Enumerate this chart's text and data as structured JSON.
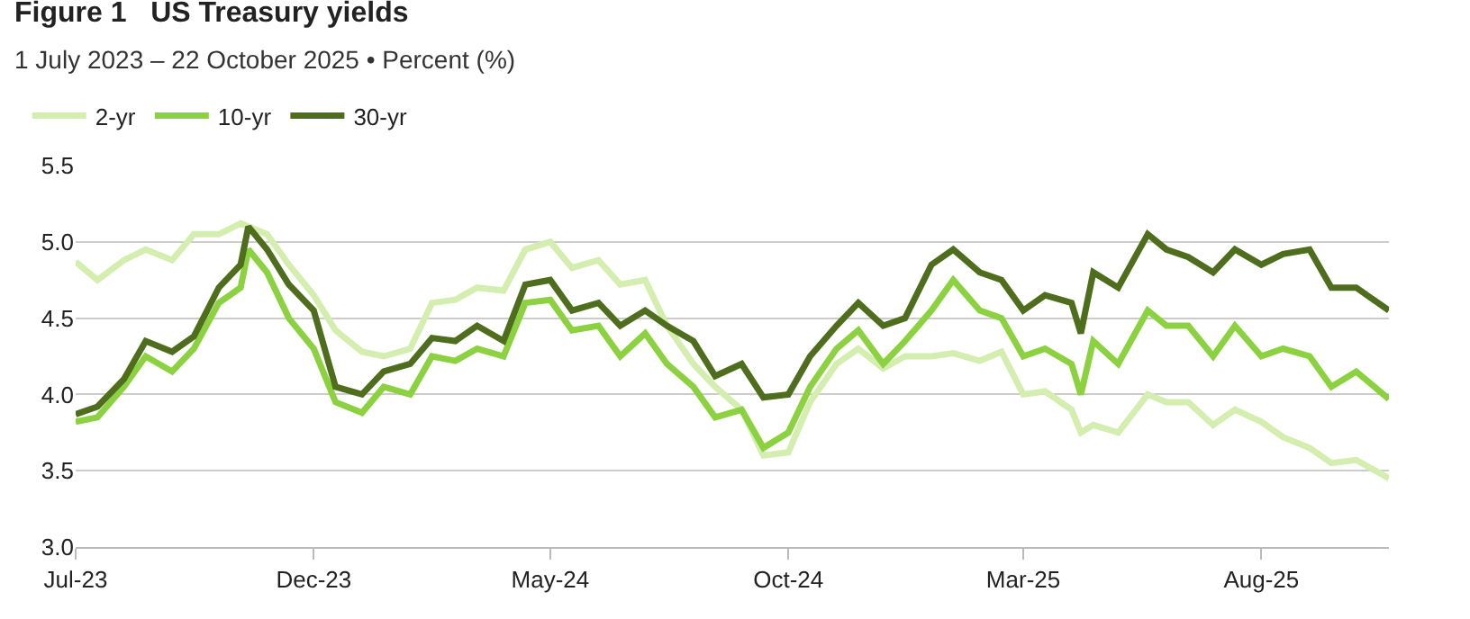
{
  "chart_data": {
    "type": "line",
    "title": "Figure 1   US Treasury yields",
    "subtitle": "1 July 2023 – 22 October 2025 • Percent (%)",
    "x": [
      "2023-07-01",
      "2023-07-15",
      "2023-08-01",
      "2023-08-15",
      "2023-09-01",
      "2023-09-15",
      "2023-10-01",
      "2023-10-15",
      "2023-10-20",
      "2023-11-01",
      "2023-11-15",
      "2023-12-01",
      "2023-12-15",
      "2024-01-01",
      "2024-01-15",
      "2024-02-01",
      "2024-02-15",
      "2024-03-01",
      "2024-03-15",
      "2024-04-01",
      "2024-04-15",
      "2024-05-01",
      "2024-05-15",
      "2024-06-01",
      "2024-06-15",
      "2024-07-01",
      "2024-07-15",
      "2024-08-01",
      "2024-08-15",
      "2024-09-01",
      "2024-09-15",
      "2024-10-01",
      "2024-10-15",
      "2024-11-01",
      "2024-11-15",
      "2024-12-01",
      "2024-12-15",
      "2025-01-01",
      "2025-01-15",
      "2025-02-01",
      "2025-02-15",
      "2025-03-01",
      "2025-03-15",
      "2025-04-01",
      "2025-04-07",
      "2025-04-15",
      "2025-05-01",
      "2025-05-20",
      "2025-06-01",
      "2025-06-15",
      "2025-07-01",
      "2025-07-15",
      "2025-08-01",
      "2025-08-15",
      "2025-09-01",
      "2025-09-15",
      "2025-10-01",
      "2025-10-22"
    ],
    "series": [
      {
        "name": "2-yr",
        "color": "#d4eeb0",
        "values": [
          4.87,
          4.75,
          4.88,
          4.95,
          4.88,
          5.05,
          5.05,
          5.12,
          5.1,
          5.05,
          4.85,
          4.65,
          4.42,
          4.28,
          4.25,
          4.3,
          4.6,
          4.62,
          4.7,
          4.68,
          4.95,
          5.0,
          4.83,
          4.88,
          4.72,
          4.75,
          4.45,
          4.2,
          4.05,
          3.9,
          3.6,
          3.62,
          3.95,
          4.2,
          4.3,
          4.17,
          4.25,
          4.25,
          4.27,
          4.22,
          4.28,
          4.0,
          4.02,
          3.9,
          3.75,
          3.8,
          3.75,
          4.0,
          3.95,
          3.95,
          3.8,
          3.9,
          3.82,
          3.72,
          3.65,
          3.55,
          3.57,
          3.45
        ]
      },
      {
        "name": "10-yr",
        "color": "#8cd13f",
        "values": [
          3.82,
          3.85,
          4.05,
          4.25,
          4.15,
          4.3,
          4.6,
          4.7,
          4.95,
          4.8,
          4.5,
          4.3,
          3.95,
          3.88,
          4.05,
          4.0,
          4.25,
          4.22,
          4.3,
          4.25,
          4.6,
          4.62,
          4.42,
          4.45,
          4.25,
          4.4,
          4.2,
          4.05,
          3.85,
          3.9,
          3.65,
          3.75,
          4.05,
          4.3,
          4.42,
          4.2,
          4.35,
          4.55,
          4.75,
          4.55,
          4.5,
          4.25,
          4.3,
          4.2,
          4.0,
          4.35,
          4.2,
          4.55,
          4.45,
          4.45,
          4.25,
          4.45,
          4.25,
          4.3,
          4.25,
          4.05,
          4.15,
          3.97
        ]
      },
      {
        "name": "30-yr",
        "color": "#4e6e1e",
        "values": [
          3.87,
          3.92,
          4.1,
          4.35,
          4.28,
          4.38,
          4.7,
          4.85,
          5.1,
          4.95,
          4.72,
          4.55,
          4.05,
          4.0,
          4.15,
          4.2,
          4.37,
          4.35,
          4.45,
          4.35,
          4.72,
          4.75,
          4.55,
          4.6,
          4.45,
          4.55,
          4.45,
          4.35,
          4.12,
          4.2,
          3.98,
          4.0,
          4.25,
          4.45,
          4.6,
          4.45,
          4.5,
          4.85,
          4.95,
          4.8,
          4.75,
          4.55,
          4.65,
          4.6,
          4.4,
          4.8,
          4.7,
          5.05,
          4.95,
          4.9,
          4.8,
          4.95,
          4.85,
          4.92,
          4.95,
          4.7,
          4.7,
          4.55
        ]
      }
    ],
    "xlim": [
      "2023-07-01",
      "2025-10-22"
    ],
    "xticks": [
      {
        "value": "2023-07-01",
        "label": "Jul-23"
      },
      {
        "value": "2023-12-01",
        "label": "Dec-23"
      },
      {
        "value": "2024-05-01",
        "label": "May-24"
      },
      {
        "value": "2024-10-01",
        "label": "Oct-24"
      },
      {
        "value": "2025-03-01",
        "label": "Mar-25"
      },
      {
        "value": "2025-08-01",
        "label": "Aug-25"
      }
    ],
    "ylim": [
      3.0,
      5.5
    ],
    "yticks": [
      {
        "value": 3.0,
        "label": "3.0"
      },
      {
        "value": 3.5,
        "label": "3.5"
      },
      {
        "value": 4.0,
        "label": "4.0"
      },
      {
        "value": 4.5,
        "label": "4.5"
      },
      {
        "value": 5.0,
        "label": "5.0"
      },
      {
        "value": 5.5,
        "label": "5.5"
      }
    ],
    "grid": "y",
    "legend": "top left",
    "marker": "none",
    "line_style": "solid"
  }
}
